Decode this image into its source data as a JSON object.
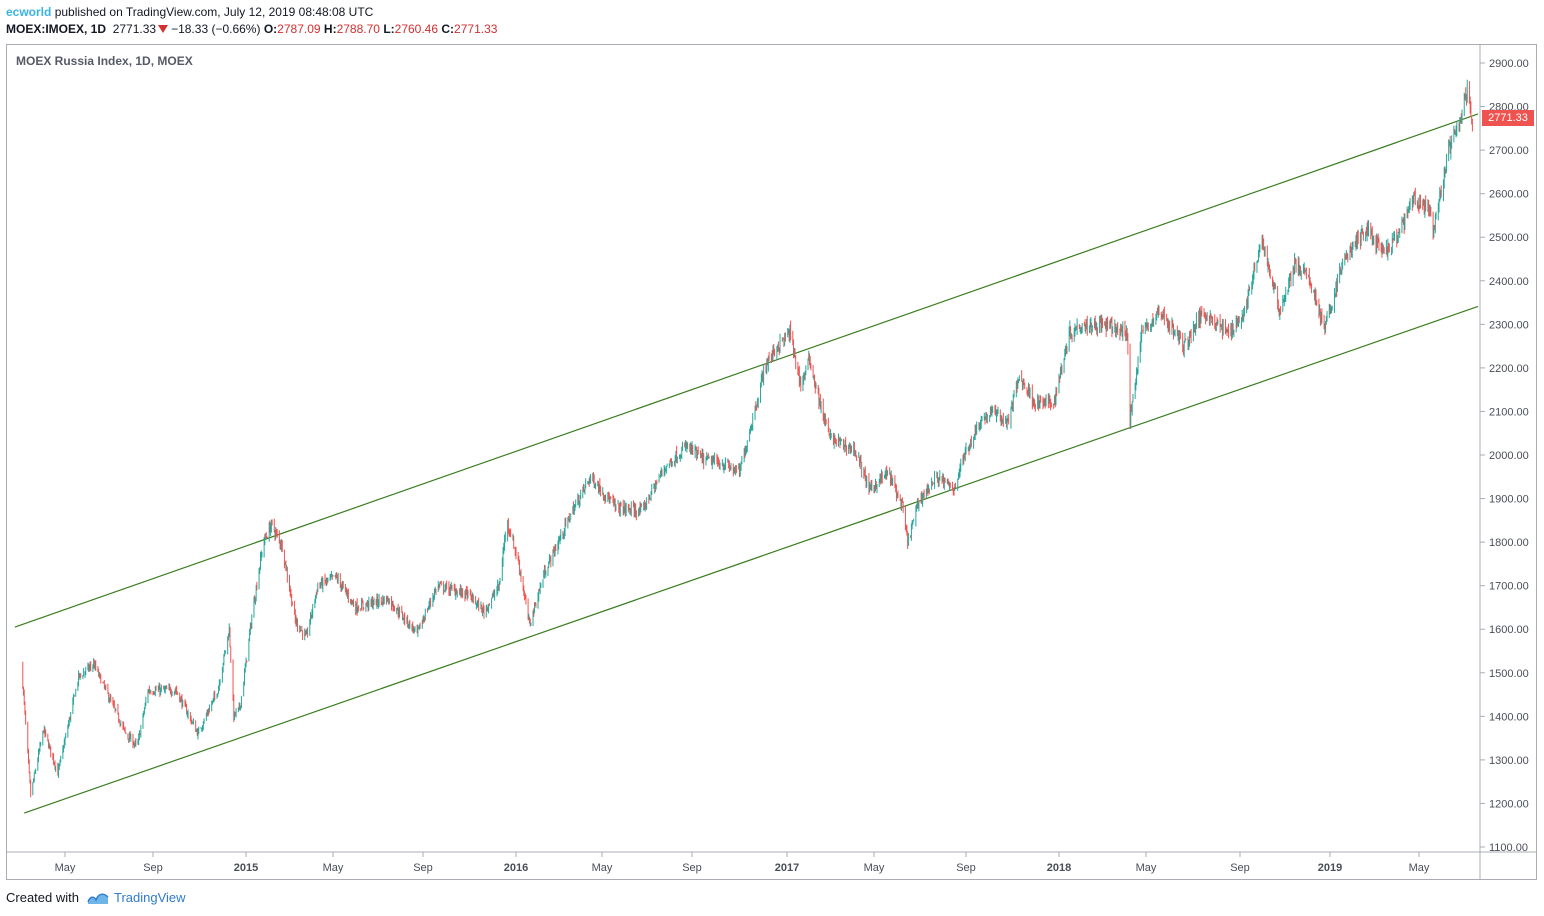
{
  "header": {
    "author": "ecworld",
    "published_text": "published on TradingView.com, July 12, 2019 08:48:08 UTC",
    "symbol": "MOEX:IMOEX, 1D",
    "last": "2771.33",
    "change": "−18.33 (−0.66%)",
    "o_label": "O:",
    "o_value": "2787.09",
    "h_label": "H:",
    "h_value": "2788.70",
    "l_label": "L:",
    "l_value": "2760.46",
    "c_label": "C:",
    "c_value": "2771.33"
  },
  "legend": "MOEX Russia Index, 1D, MOEX",
  "footer": {
    "created": "Created with",
    "brand": "TradingView"
  },
  "colors": {
    "up": "#26a69a",
    "down": "#ef5350",
    "channel": "#3a7d1f",
    "price_tag": "#ef5350"
  },
  "chart_data": {
    "type": "candlestick",
    "title": "MOEX Russia Index, 1D, MOEX",
    "x_tick_labels": [
      "May",
      "Sep",
      "2015",
      "May",
      "Sep",
      "2016",
      "May",
      "Sep",
      "2017",
      "May",
      "Sep",
      "2018",
      "May",
      "Sep",
      "2019",
      "May"
    ],
    "x_ticks_dates": [
      "2014-05-01",
      "2014-09-01",
      "2015-01-01",
      "2015-05-01",
      "2015-09-01",
      "2016-01-01",
      "2016-05-01",
      "2016-09-01",
      "2017-01-01",
      "2017-05-01",
      "2017-09-01",
      "2018-01-01",
      "2018-05-01",
      "2018-09-01",
      "2019-01-01",
      "2019-05-01"
    ],
    "y_tick_labels": [
      "1100.00",
      "1200.00",
      "1300.00",
      "1400.00",
      "1500.00",
      "1600.00",
      "1700.00",
      "1800.00",
      "1900.00",
      "2000.00",
      "2100.00",
      "2200.00",
      "2300.00",
      "2400.00",
      "2500.00",
      "2600.00",
      "2700.00",
      "2800.00",
      "2900.00"
    ],
    "ylim": [
      1100,
      2930
    ],
    "last_price": "2771.33",
    "price_path": [
      [
        "2014-03-01",
        1520
      ],
      [
        "2014-03-14",
        1220
      ],
      [
        "2014-04-01",
        1370
      ],
      [
        "2014-04-21",
        1270
      ],
      [
        "2014-05-20",
        1490
      ],
      [
        "2014-06-10",
        1520
      ],
      [
        "2014-07-25",
        1360
      ],
      [
        "2014-08-10",
        1330
      ],
      [
        "2014-08-25",
        1460
      ],
      [
        "2014-10-01",
        1460
      ],
      [
        "2014-10-30",
        1360
      ],
      [
        "2014-11-25",
        1460
      ],
      [
        "2014-12-10",
        1600
      ],
      [
        "2014-12-16",
        1400
      ],
      [
        "2014-12-24",
        1420
      ],
      [
        "2015-01-10",
        1640
      ],
      [
        "2015-01-25",
        1800
      ],
      [
        "2015-02-05",
        1840
      ],
      [
        "2015-02-20",
        1790
      ],
      [
        "2015-03-10",
        1620
      ],
      [
        "2015-03-25",
        1580
      ],
      [
        "2015-04-10",
        1700
      ],
      [
        "2015-05-05",
        1720
      ],
      [
        "2015-06-01",
        1650
      ],
      [
        "2015-07-15",
        1670
      ],
      [
        "2015-08-24",
        1590
      ],
      [
        "2015-09-20",
        1700
      ],
      [
        "2015-10-30",
        1680
      ],
      [
        "2015-11-20",
        1640
      ],
      [
        "2015-12-10",
        1700
      ],
      [
        "2015-12-20",
        1850
      ],
      [
        "2016-01-05",
        1750
      ],
      [
        "2016-01-20",
        1610
      ],
      [
        "2016-02-10",
        1730
      ],
      [
        "2016-03-20",
        1870
      ],
      [
        "2016-04-15",
        1950
      ],
      [
        "2016-05-20",
        1880
      ],
      [
        "2016-06-24",
        1870
      ],
      [
        "2016-07-25",
        1970
      ],
      [
        "2016-08-25",
        2020
      ],
      [
        "2016-09-15",
        1990
      ],
      [
        "2016-10-10",
        1980
      ],
      [
        "2016-11-01",
        1960
      ],
      [
        "2016-11-20",
        2100
      ],
      [
        "2016-12-05",
        2210
      ],
      [
        "2016-12-20",
        2250
      ],
      [
        "2017-01-05",
        2280
      ],
      [
        "2017-01-20",
        2160
      ],
      [
        "2017-02-01",
        2220
      ],
      [
        "2017-02-15",
        2120
      ],
      [
        "2017-03-01",
        2040
      ],
      [
        "2017-04-05",
        2010
      ],
      [
        "2017-04-25",
        1920
      ],
      [
        "2017-05-20",
        1960
      ],
      [
        "2017-06-08",
        1880
      ],
      [
        "2017-06-15",
        1800
      ],
      [
        "2017-07-01",
        1900
      ],
      [
        "2017-07-25",
        1950
      ],
      [
        "2017-08-15",
        1920
      ],
      [
        "2017-08-30",
        2000
      ],
      [
        "2017-09-20",
        2080
      ],
      [
        "2017-10-10",
        2100
      ],
      [
        "2017-10-25",
        2070
      ],
      [
        "2017-11-10",
        2180
      ],
      [
        "2017-12-01",
        2120
      ],
      [
        "2017-12-25",
        2120
      ],
      [
        "2018-01-15",
        2280
      ],
      [
        "2018-02-01",
        2300
      ],
      [
        "2018-03-01",
        2300
      ],
      [
        "2018-04-05",
        2280
      ],
      [
        "2018-04-09",
        2080
      ],
      [
        "2018-04-25",
        2280
      ],
      [
        "2018-05-20",
        2330
      ],
      [
        "2018-06-20",
        2250
      ],
      [
        "2018-07-15",
        2330
      ],
      [
        "2018-08-15",
        2280
      ],
      [
        "2018-09-05",
        2320
      ],
      [
        "2018-10-01",
        2490
      ],
      [
        "2018-10-25",
        2330
      ],
      [
        "2018-11-15",
        2440
      ],
      [
        "2018-12-05",
        2400
      ],
      [
        "2018-12-25",
        2290
      ],
      [
        "2019-01-20",
        2450
      ],
      [
        "2019-02-20",
        2520
      ],
      [
        "2019-03-15",
        2460
      ],
      [
        "2019-04-01",
        2500
      ],
      [
        "2019-04-25",
        2590
      ],
      [
        "2019-05-15",
        2560
      ],
      [
        "2019-05-20",
        2510
      ],
      [
        "2019-06-10",
        2700
      ],
      [
        "2019-06-25",
        2760
      ],
      [
        "2019-07-05",
        2840
      ],
      [
        "2019-07-12",
        2771
      ]
    ],
    "trendlines": [
      {
        "name": "",
        "from": [
          "2014-02-20",
          1605
        ],
        "to": [
          "2019-07-31",
          2790
        ]
      },
      {
        "name": "",
        "from": [
          "2014-03-05",
          1178
        ],
        "to": [
          "2019-07-31",
          2348
        ]
      }
    ]
  }
}
